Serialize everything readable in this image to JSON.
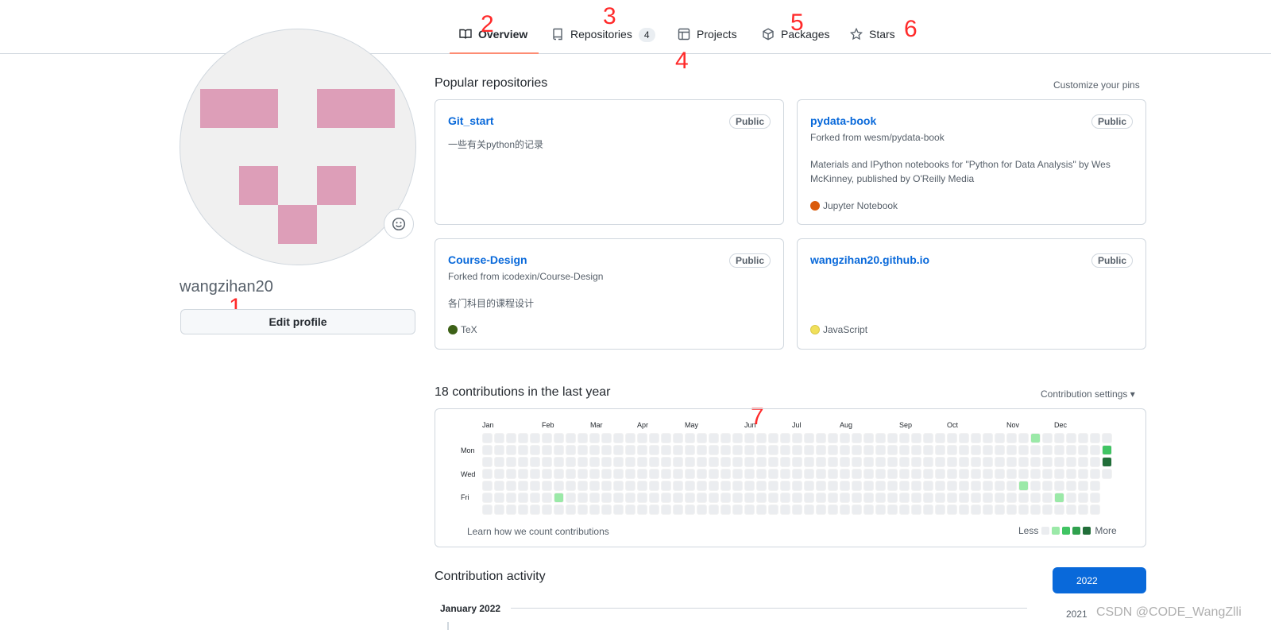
{
  "tabs": [
    {
      "label": "Overview",
      "icon": "book-icon",
      "active": true
    },
    {
      "label": "Repositories",
      "icon": "repo-icon",
      "counter": "4"
    },
    {
      "label": "Projects",
      "icon": "project-icon"
    },
    {
      "label": "Packages",
      "icon": "package-icon"
    },
    {
      "label": "Stars",
      "icon": "star-icon"
    }
  ],
  "annotations": [
    "1",
    "2",
    "3",
    "4",
    "5",
    "6",
    "7"
  ],
  "profile": {
    "username": "wangzihan20",
    "edit_label": "Edit profile"
  },
  "popular": {
    "title": "Popular repositories",
    "customize_label": "Customize your pins",
    "repos": [
      {
        "name": "Git_start",
        "visibility": "Public",
        "forked": "",
        "description": "一些有关python的记录",
        "language": "",
        "lang_color": ""
      },
      {
        "name": "pydata-book",
        "visibility": "Public",
        "forked": "Forked from wesm/pydata-book",
        "description": "Materials and IPython notebooks for \"Python for Data Analysis\" by Wes McKinney, published by O'Reilly Media",
        "language": "Jupyter Notebook",
        "lang_color": "#DA5B0B"
      },
      {
        "name": "Course-Design",
        "visibility": "Public",
        "forked": "Forked from icodexin/Course-Design",
        "description": "各门科目的课程设计",
        "language": "TeX",
        "lang_color": "#3D6117"
      },
      {
        "name": "wangzihan20.github.io",
        "visibility": "Public",
        "forked": "",
        "description": "",
        "language": "JavaScript",
        "lang_color": "#f1e05a"
      }
    ]
  },
  "contributions": {
    "title": "18 contributions in the last year",
    "settings_label": "Contribution settings ▾",
    "months": [
      "Jan",
      "Feb",
      "Mar",
      "Apr",
      "May",
      "Jun",
      "Jul",
      "Aug",
      "Sep",
      "Oct",
      "Nov",
      "Dec"
    ],
    "days": [
      "Mon",
      "Wed",
      "Fri"
    ],
    "learn_label": "Learn how we count contributions",
    "less_label": "Less",
    "more_label": "More",
    "colors": [
      "#ebedf0",
      "#9be9a8",
      "#40c463",
      "#30a14e",
      "#216e39"
    ],
    "active_cells": [
      {
        "week": 6,
        "day": 5,
        "level": 1
      },
      {
        "week": 45,
        "day": 4,
        "level": 1
      },
      {
        "week": 46,
        "day": 0,
        "level": 1
      },
      {
        "week": 48,
        "day": 5,
        "level": 1
      },
      {
        "week": 52,
        "day": 1,
        "level": 2
      },
      {
        "week": 52,
        "day": 2,
        "level": 4
      }
    ]
  },
  "activity": {
    "title": "Contribution activity",
    "month_label": "January 2022",
    "years": [
      "2022",
      "2021"
    ]
  },
  "watermark": "CSDN @CODE_WangZlli"
}
